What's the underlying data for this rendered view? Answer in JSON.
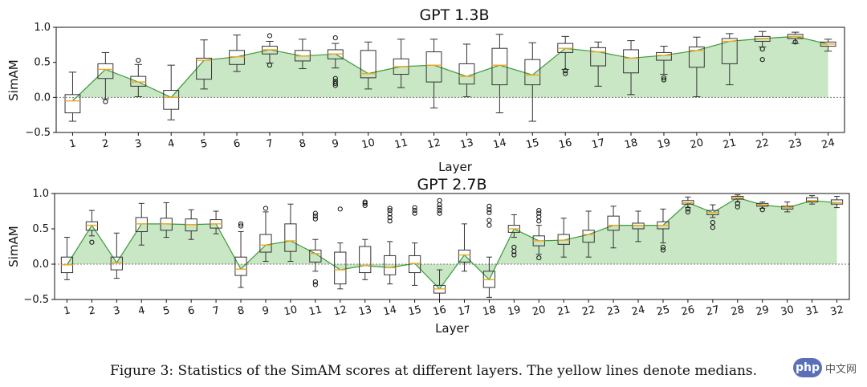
{
  "caption": "Figure 3: Statistics of the SimAM scores at different layers. The yellow lines denote medians.",
  "watermark": {
    "badge": "php",
    "text": "中文网"
  },
  "colors": {
    "fill": "#c9e6c5",
    "line": "#3a9a3a",
    "median": "#f5a623",
    "box": "#333333",
    "zero": "#777777"
  },
  "chart_data": [
    {
      "type": "box",
      "title": "GPT 1.3B",
      "xlabel": "Layer",
      "ylabel": "SimAM",
      "ylim": [
        -0.5,
        1.0
      ],
      "yticks": [
        -0.5,
        0.0,
        0.5,
        1.0
      ],
      "ytick_labels": [
        "−0.5",
        "0.0",
        "0.5",
        "1.0"
      ],
      "categories": [
        "1",
        "2",
        "3",
        "4",
        "5",
        "6",
        "7",
        "8",
        "9",
        "10",
        "11",
        "12",
        "13",
        "14",
        "15",
        "16",
        "17",
        "18",
        "19",
        "20",
        "21",
        "22",
        "23",
        "24"
      ],
      "medians": [
        -0.05,
        0.4,
        0.22,
        0.0,
        0.53,
        0.58,
        0.68,
        0.59,
        0.62,
        0.34,
        0.44,
        0.46,
        0.3,
        0.46,
        0.32,
        0.7,
        0.65,
        0.56,
        0.6,
        0.67,
        0.8,
        0.84,
        0.87,
        0.76
      ],
      "q1": [
        -0.22,
        0.27,
        0.16,
        -0.17,
        0.26,
        0.47,
        0.62,
        0.52,
        0.55,
        0.28,
        0.33,
        0.22,
        0.19,
        0.18,
        0.18,
        0.64,
        0.45,
        0.35,
        0.53,
        0.43,
        0.48,
        0.8,
        0.84,
        0.73
      ],
      "q3": [
        0.04,
        0.48,
        0.3,
        0.1,
        0.56,
        0.67,
        0.73,
        0.67,
        0.68,
        0.67,
        0.55,
        0.65,
        0.48,
        0.7,
        0.54,
        0.77,
        0.71,
        0.68,
        0.64,
        0.72,
        0.84,
        0.87,
        0.9,
        0.79
      ],
      "whisker_low": [
        -0.34,
        -0.02,
        0.01,
        -0.32,
        0.12,
        0.37,
        0.49,
        0.41,
        0.42,
        0.12,
        0.14,
        -0.15,
        0.01,
        -0.22,
        -0.34,
        0.4,
        0.16,
        0.04,
        0.33,
        0.01,
        0.18,
        0.72,
        0.77,
        0.66
      ],
      "whisker_high": [
        0.36,
        0.64,
        0.47,
        0.46,
        0.82,
        0.89,
        0.8,
        0.83,
        0.77,
        0.79,
        0.83,
        0.83,
        0.76,
        0.9,
        0.78,
        0.87,
        0.79,
        0.81,
        0.73,
        0.86,
        0.91,
        0.94,
        0.93,
        0.83
      ],
      "outliers": [
        [],
        [
          -0.06
        ],
        [
          0.53
        ],
        [],
        [],
        [],
        [
          0.88,
          0.46
        ],
        [],
        [
          0.85,
          0.27,
          0.23,
          0.2,
          0.17
        ],
        [],
        [],
        [],
        [],
        [],
        [],
        [
          0.38,
          0.34
        ],
        [],
        [],
        [
          0.28,
          0.25
        ],
        [],
        [],
        [
          0.69,
          0.54
        ],
        [
          0.79
        ],
        []
      ]
    },
    {
      "type": "box",
      "title": "GPT 2.7B",
      "xlabel": "Layer",
      "ylabel": "SimAM",
      "ylim": [
        -0.5,
        1.0
      ],
      "yticks": [
        -0.5,
        0.0,
        0.5,
        1.0
      ],
      "ytick_labels": [
        "−0.5",
        "0.0",
        "0.5",
        "1.0"
      ],
      "categories": [
        "1",
        "2",
        "3",
        "4",
        "5",
        "6",
        "7",
        "8",
        "9",
        "10",
        "11",
        "12",
        "13",
        "14",
        "15",
        "16",
        "17",
        "18",
        "19",
        "20",
        "21",
        "22",
        "23",
        "24",
        "25",
        "26",
        "27",
        "28",
        "29",
        "30",
        "31",
        "32"
      ],
      "medians": [
        -0.01,
        0.55,
        0.02,
        0.57,
        0.57,
        0.56,
        0.57,
        -0.07,
        0.27,
        0.33,
        0.15,
        -0.08,
        -0.02,
        -0.05,
        0.01,
        -0.35,
        0.13,
        -0.22,
        0.5,
        0.33,
        0.34,
        0.42,
        0.55,
        0.55,
        0.55,
        0.87,
        0.73,
        0.94,
        0.84,
        0.8,
        0.9,
        0.87
      ],
      "q1": [
        -0.12,
        0.48,
        -0.08,
        0.46,
        0.48,
        0.47,
        0.51,
        -0.16,
        0.17,
        0.18,
        0.03,
        -0.28,
        -0.12,
        -0.15,
        -0.12,
        -0.41,
        0.03,
        -0.33,
        0.45,
        0.26,
        0.28,
        0.31,
        0.48,
        0.5,
        0.5,
        0.85,
        0.7,
        0.92,
        0.82,
        0.78,
        0.88,
        0.85
      ],
      "q3": [
        0.1,
        0.6,
        0.1,
        0.66,
        0.65,
        0.64,
        0.63,
        0.1,
        0.42,
        0.57,
        0.2,
        0.17,
        0.25,
        0.12,
        0.12,
        -0.3,
        0.2,
        -0.1,
        0.55,
        0.4,
        0.42,
        0.48,
        0.68,
        0.58,
        0.6,
        0.9,
        0.76,
        0.96,
        0.86,
        0.82,
        0.94,
        0.91
      ],
      "whisker_low": [
        -0.22,
        0.4,
        -0.2,
        0.27,
        0.38,
        0.35,
        0.43,
        -0.33,
        0.04,
        0.04,
        -0.1,
        -0.35,
        -0.22,
        -0.28,
        -0.3,
        -0.5,
        -0.1,
        -0.47,
        0.38,
        0.14,
        0.1,
        0.1,
        0.23,
        0.32,
        0.3,
        0.8,
        0.66,
        0.88,
        0.79,
        0.74,
        0.85,
        0.8
      ],
      "whisker_high": [
        0.38,
        0.76,
        0.44,
        0.86,
        0.87,
        0.77,
        0.75,
        0.46,
        0.74,
        0.85,
        0.35,
        0.3,
        0.35,
        0.32,
        0.3,
        -0.08,
        0.57,
        0.1,
        0.7,
        0.55,
        0.65,
        0.75,
        0.82,
        0.75,
        0.78,
        0.95,
        0.84,
        0.98,
        0.88,
        0.88,
        0.97,
        0.96
      ],
      "outliers": [
        [],
        [
          0.31
        ],
        [],
        [],
        [],
        [],
        [],
        [
          0.57,
          0.54
        ],
        [
          0.79
        ],
        [],
        [
          0.72,
          0.68,
          0.64,
          -0.25,
          -0.29
        ],
        [
          0.78
        ],
        [
          0.88,
          0.86,
          0.83
        ],
        [
          0.79,
          0.76,
          0.71,
          0.66,
          0.61
        ],
        [
          0.8,
          0.76,
          0.72
        ],
        [
          0.9,
          0.84,
          0.8,
          0.76,
          0.72
        ],
        [],
        [
          0.82,
          0.77,
          0.73,
          0.62,
          0.55
        ],
        [
          0.24,
          0.18,
          0.13
        ],
        [
          0.76,
          0.72,
          0.67,
          0.61,
          0.09
        ],
        [],
        [],
        [],
        [],
        [
          0.24,
          0.2
        ],
        [
          0.78,
          0.74
        ],
        [
          0.59,
          0.52
        ],
        [
          0.86,
          0.81
        ],
        [
          0.77
        ],
        [],
        [],
        []
      ]
    }
  ]
}
